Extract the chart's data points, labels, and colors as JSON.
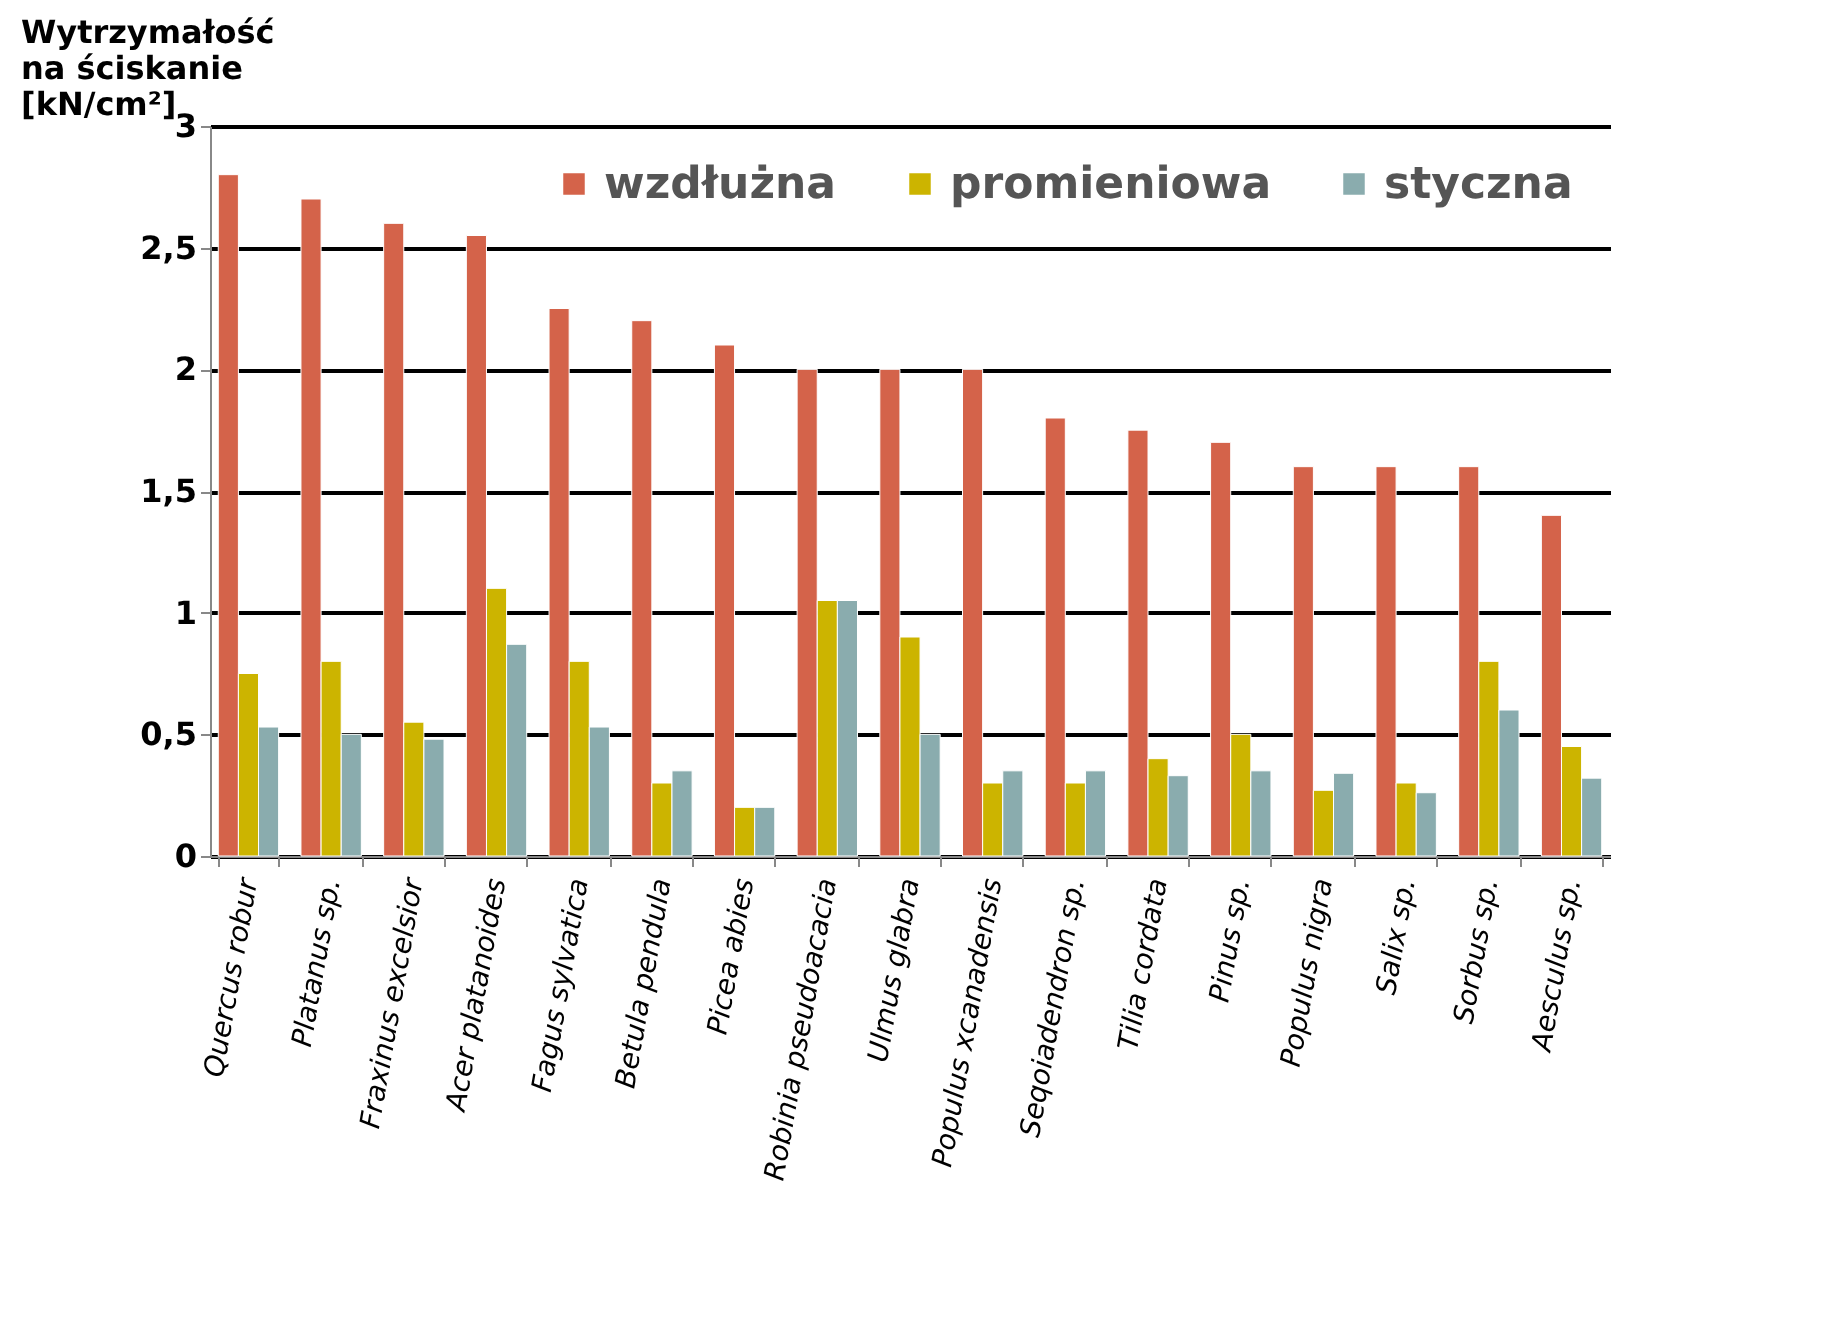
{
  "chart_data": {
    "type": "bar",
    "ylabel": "Wytrzymałość na ściskanie [kN/cm²]",
    "categories": [
      "Quercus robur",
      "Platanus sp.",
      "Fraxinus excelsior",
      "Acer platanoides",
      "Fagus sylvatica",
      "Betula pendula",
      "Picea abies",
      "Robinia pseudoacacia",
      "Ulmus glabra",
      "Populus xcanadensis",
      "Seqoiadendron sp.",
      "Tilia cordata",
      "Pinus sp.",
      "Populus nigra",
      "Salix sp.",
      "Sorbus sp.",
      "Aesculus sp."
    ],
    "series": [
      {
        "name": "wzdłużna",
        "color": "#d4634a",
        "values": [
          2.8,
          2.7,
          2.6,
          2.55,
          2.25,
          2.2,
          2.1,
          2.0,
          2.0,
          2.0,
          1.8,
          1.75,
          1.7,
          1.6,
          1.6,
          1.6,
          1.4
        ]
      },
      {
        "name": "promieniowa",
        "color": "#ccb400",
        "values": [
          0.75,
          0.8,
          0.55,
          1.1,
          0.8,
          0.3,
          0.2,
          1.05,
          0.9,
          0.3,
          0.3,
          0.4,
          0.5,
          0.27,
          0.3,
          0.8,
          0.45
        ]
      },
      {
        "name": "styczna",
        "color": "#8aacae",
        "values": [
          0.53,
          0.5,
          0.48,
          0.87,
          0.53,
          0.35,
          0.2,
          1.05,
          0.5,
          0.35,
          0.35,
          0.33,
          0.35,
          0.34,
          0.26,
          0.6,
          0.32
        ]
      }
    ],
    "ylim": [
      0,
      3
    ],
    "yticks": [
      0,
      {
        "value": 0.5,
        "label": "0,5"
      },
      1,
      {
        "value": 1.5,
        "label": "1,5"
      },
      2,
      {
        "value": 2.5,
        "label": "2,5"
      },
      3
    ],
    "grid": "y",
    "legend": "top right"
  }
}
